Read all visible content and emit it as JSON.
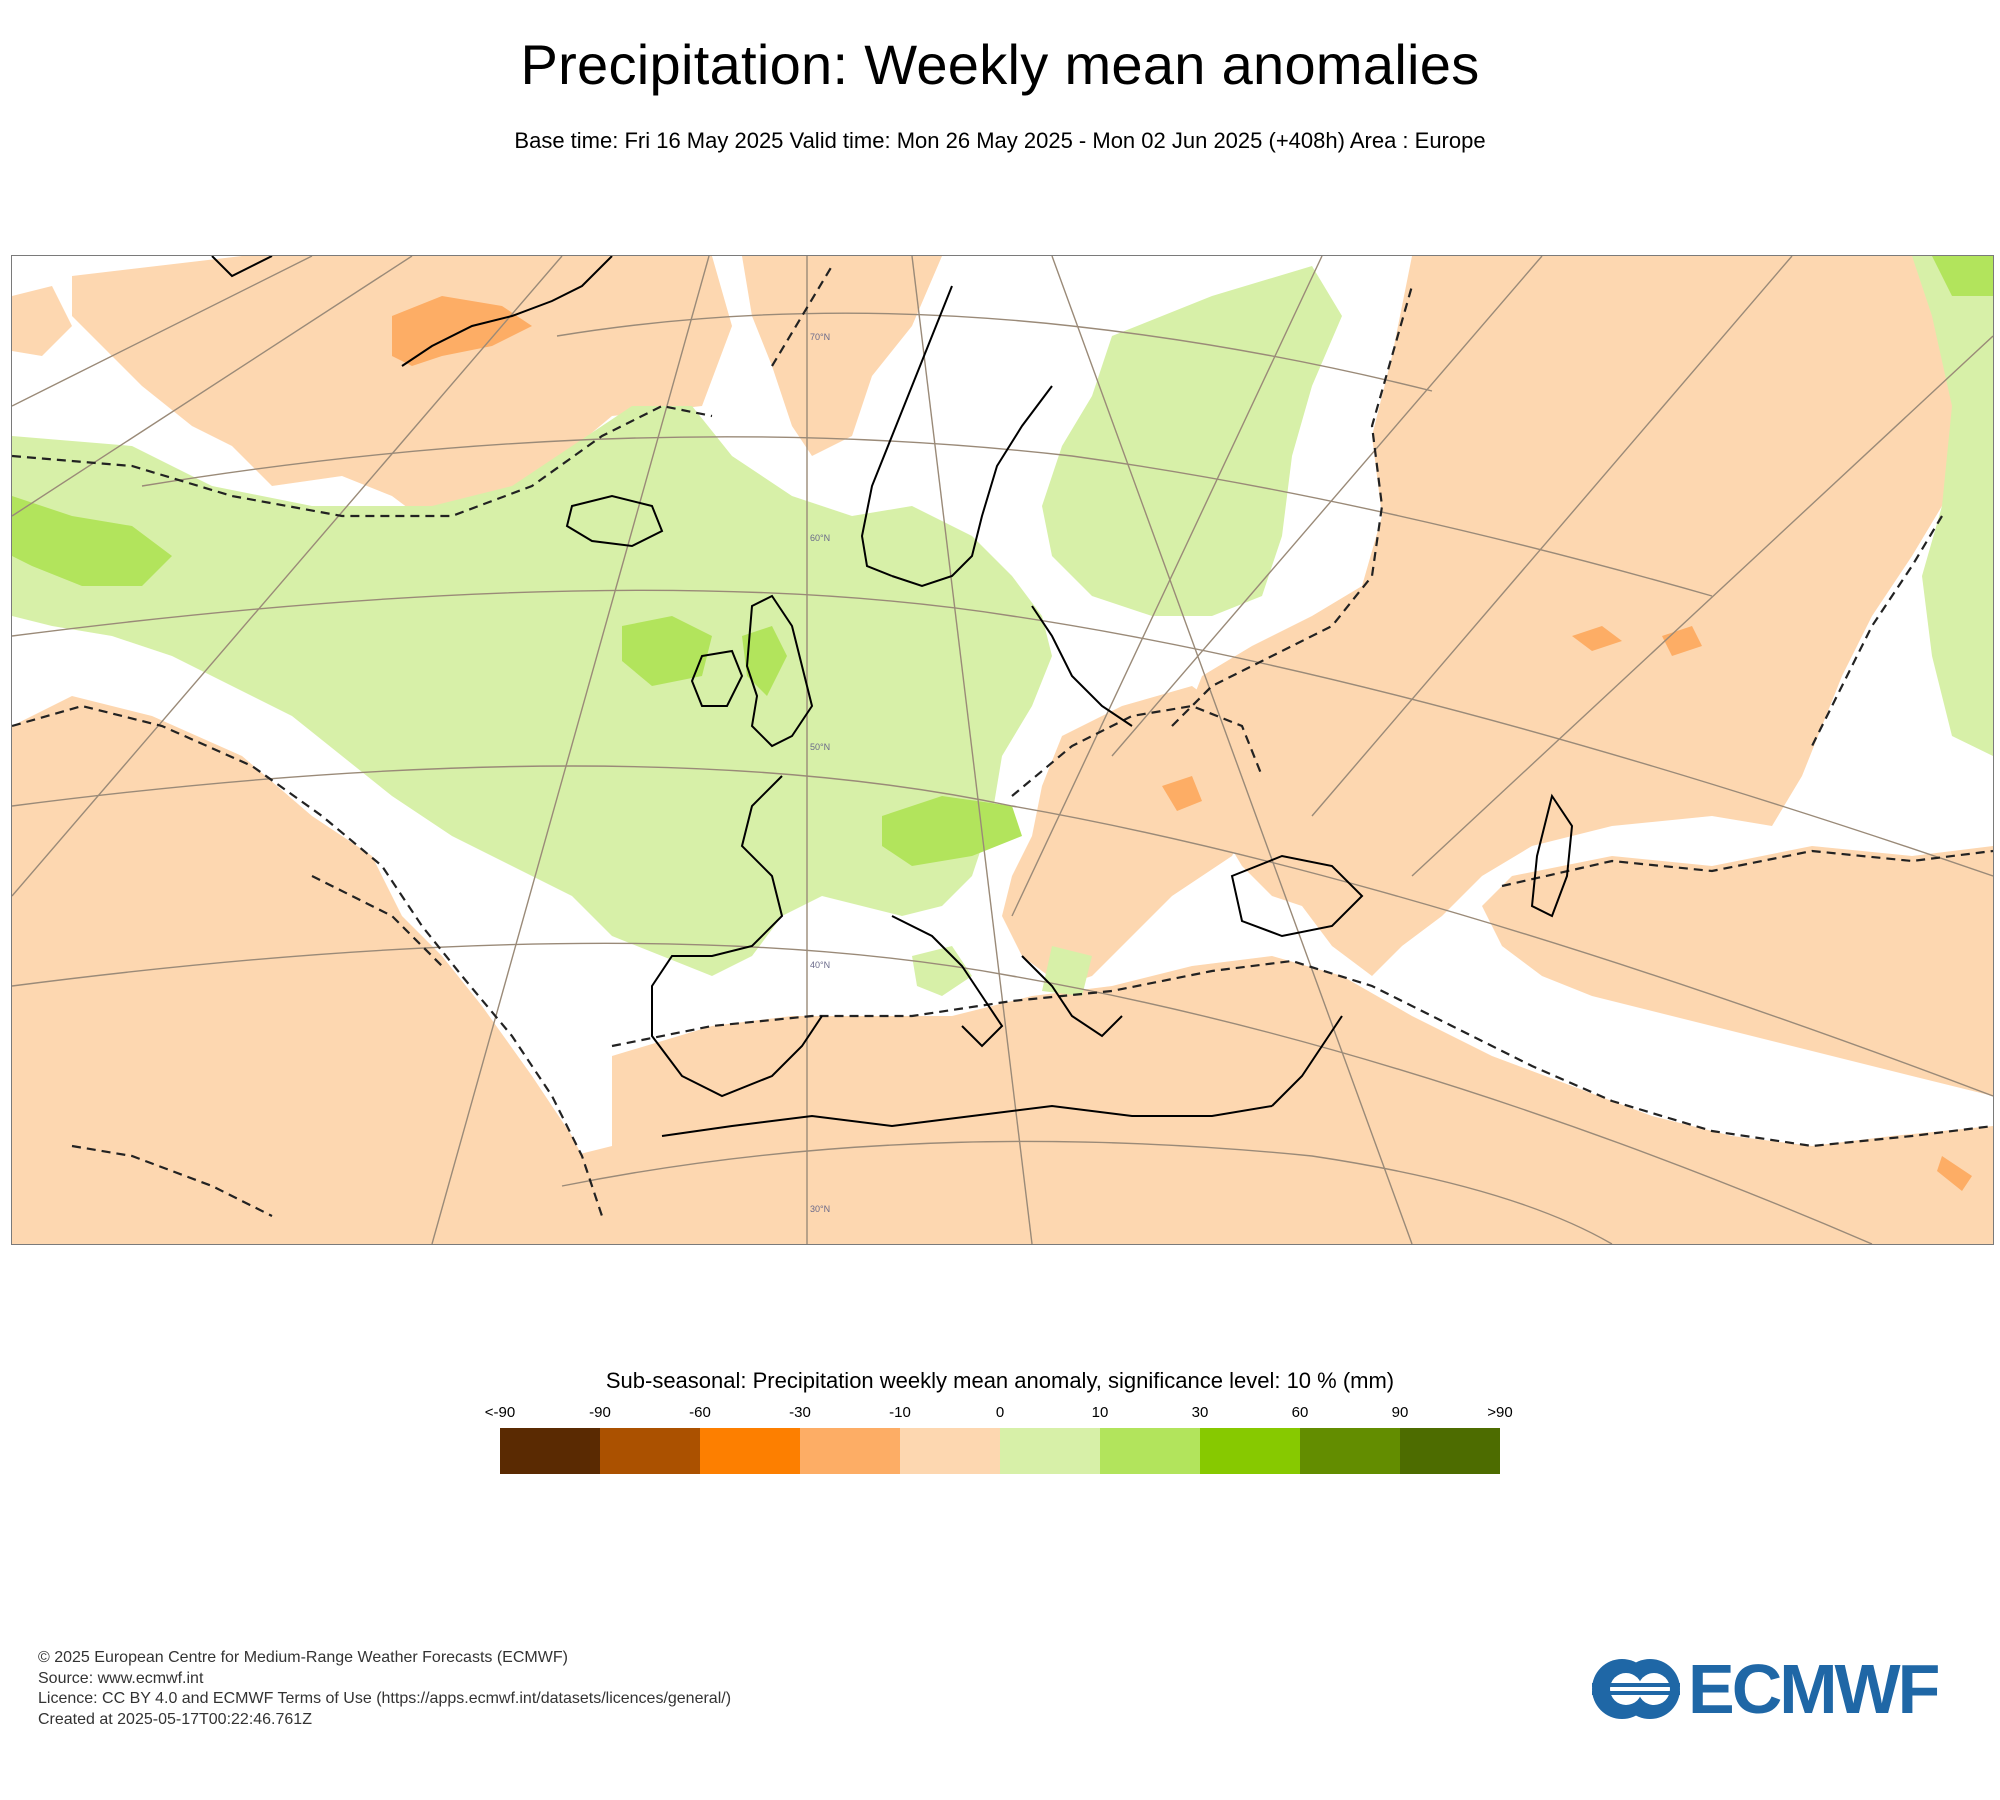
{
  "header": {
    "title": "Precipitation: Weekly mean anomalies",
    "subtitle": "Base time: Fri 16 May 2025 Valid time: Mon 26 May 2025 - Mon 02 Jun 2025 (+408h) Area : Europe"
  },
  "map": {
    "lat_labels": [
      "70°N",
      "60°N",
      "50°N",
      "40°N",
      "30°N"
    ],
    "colors": {
      "light_dry": "#fdd7b0",
      "dry_medium": "#fdad65",
      "light_wet": "#d7f0a8",
      "wet_medium": "#b2e45c",
      "coast": "#000000",
      "graticule": "#9a8a78"
    }
  },
  "legend": {
    "title": "Sub-seasonal: Precipitation weekly mean anomaly, significance level: 10 % (mm)",
    "labels": [
      "<-90",
      "-90",
      "-60",
      "-30",
      "-10",
      "0",
      "10",
      "30",
      "60",
      "90",
      ">90"
    ],
    "colors": [
      "#5a2a02",
      "#ab5100",
      "#fd7f00",
      "#fdad65",
      "#fdd7b0",
      "#d7f0a8",
      "#b2e45c",
      "#87c900",
      "#638d00",
      "#4d6c00"
    ]
  },
  "footer": {
    "copyright": "© 2025 European Centre for Medium-Range Weather Forecasts (ECMWF)",
    "source": "Source: www.ecmwf.int",
    "licence": "Licence: CC BY 4.0 and ECMWF Terms of Use (https://apps.ecmwf.int/datasets/licences/general/)",
    "created": "Created at 2025-05-17T00:22:46.761Z"
  },
  "logo": {
    "text": "ECMWF"
  }
}
